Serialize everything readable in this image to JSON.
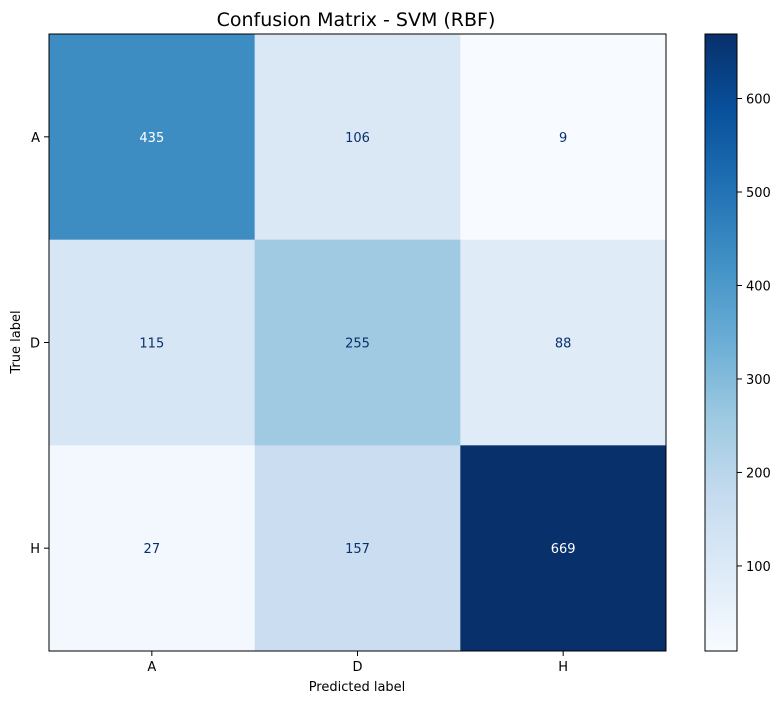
{
  "chart_data": {
    "type": "heatmap",
    "title": "Confusion Matrix - SVM (RBF)",
    "xlabel": "Predicted label",
    "ylabel": "True label",
    "x_categories": [
      "A",
      "D",
      "H"
    ],
    "y_categories": [
      "A",
      "D",
      "H"
    ],
    "values": [
      [
        435,
        106,
        9
      ],
      [
        115,
        255,
        88
      ],
      [
        27,
        157,
        669
      ]
    ],
    "colormap": "Blues",
    "color_range": [
      9,
      669
    ],
    "colorbar_ticks": [
      100,
      200,
      300,
      400,
      500,
      600
    ],
    "text_color_light": "#ffffff",
    "text_color_dark": "#08306b"
  }
}
